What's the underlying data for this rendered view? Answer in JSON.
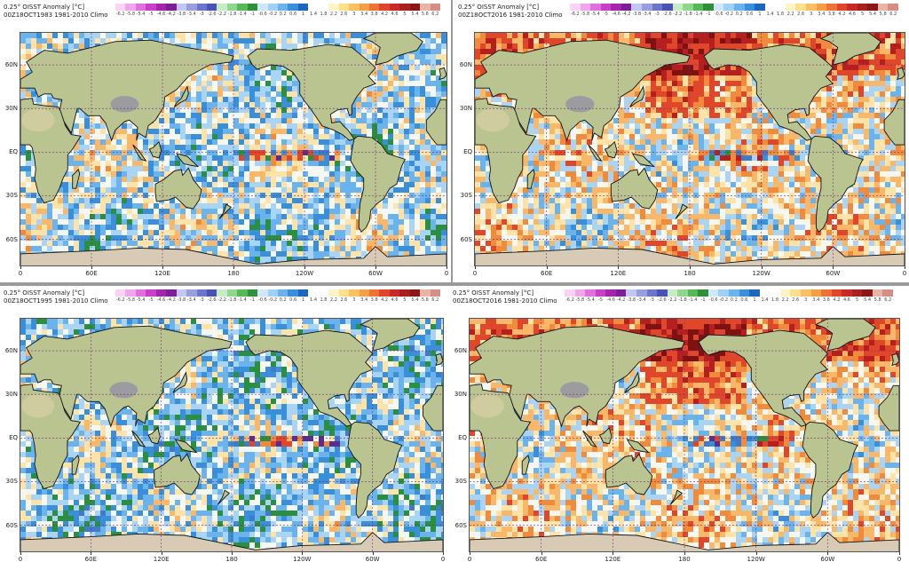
{
  "colorbar": {
    "ticks": [
      "-6.2",
      "-5.8",
      "-5.4",
      "-5",
      "-4.6",
      "-4.2",
      "-3.8",
      "-3.4",
      "-3",
      "-2.6",
      "-2.2",
      "-1.8",
      "-1.4",
      "-1",
      "-0.6",
      "-0.2",
      "0.2",
      "0.6",
      "1",
      "1.4",
      "1.8",
      "2.2",
      "2.6",
      "3",
      "3.4",
      "3.8",
      "4.2",
      "4.6",
      "5",
      "5.4",
      "5.8",
      "6.2"
    ],
    "colors": [
      "#fbd3f5",
      "#f0a6ea",
      "#e170dc",
      "#c93fca",
      "#a625b0",
      "#7d1f96",
      "#c3c6ef",
      "#999ee0",
      "#6c74cc",
      "#4a52b4",
      "#c5ecc5",
      "#8fd68e",
      "#55b955",
      "#2f8f3a",
      "#cfe6fb",
      "#9fd0f5",
      "#6ab3ec",
      "#3a8fdb",
      "#1c66be",
      "#ffffff",
      "#ffffff",
      "#fff4c6",
      "#fde08c",
      "#fbc064",
      "#f59e45",
      "#ee7436",
      "#e0472a",
      "#c92a25",
      "#a8201f",
      "#891717",
      "#e9b3a8",
      "#d48e83"
    ]
  },
  "axes": {
    "lat_labels": [
      "60N",
      "30N",
      "EQ",
      "30S",
      "60S"
    ],
    "lon_labels": [
      "0",
      "60E",
      "120E",
      "180",
      "120W",
      "60W",
      "0"
    ]
  },
  "panels": [
    {
      "line1": "0.25° OISST Anomaly [°C]",
      "line2": "00Z18OCT1983 1981-2010 Climo",
      "anomaly_bias": -0.15,
      "seed": 11
    },
    {
      "line1": "0.25° OISST Anomaly [°C]",
      "line2": "00Z18OCT2016 1981-2010 Climo",
      "anomaly_bias": 0.55,
      "seed": 23
    },
    {
      "line1": "0.25° OISST Anomaly [°C]",
      "line2": "00Z18OCT1995 1981-2010 Climo",
      "anomaly_bias": -0.35,
      "seed": 37
    },
    {
      "line1": "0.25° OISST Anomaly [°C]",
      "line2": "00Z18OCT2016 1981-2010 Climo",
      "anomaly_bias": 0.6,
      "seed": 53
    }
  ]
}
